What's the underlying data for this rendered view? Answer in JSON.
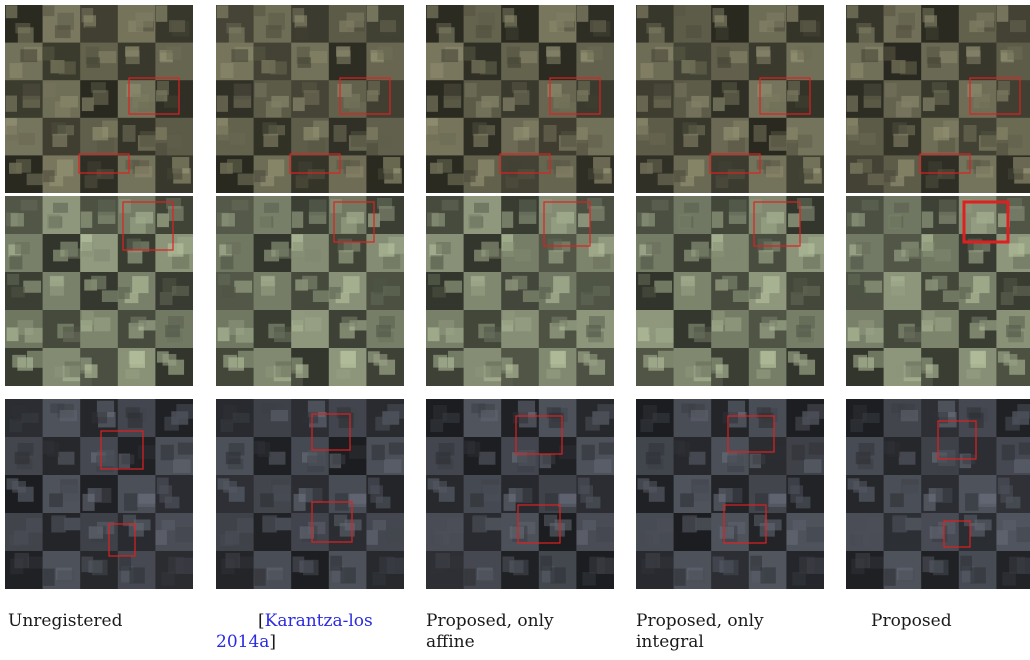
{
  "columns": [
    {
      "caption": "Unregistered"
    },
    {
      "caption_prefix": "[",
      "caption_cite": "Karantza-los 2014a",
      "caption_suffix": "]"
    },
    {
      "caption": "Proposed, only affine"
    },
    {
      "caption": "Proposed, only integral"
    },
    {
      "caption": "Proposed"
    }
  ],
  "colors": {
    "highlight_box": "#e02020",
    "citation_link": "#2b2be0",
    "scene_rural": "#5b5a47",
    "scene_field": "#6e7560",
    "scene_urban": "#3d4047"
  }
}
